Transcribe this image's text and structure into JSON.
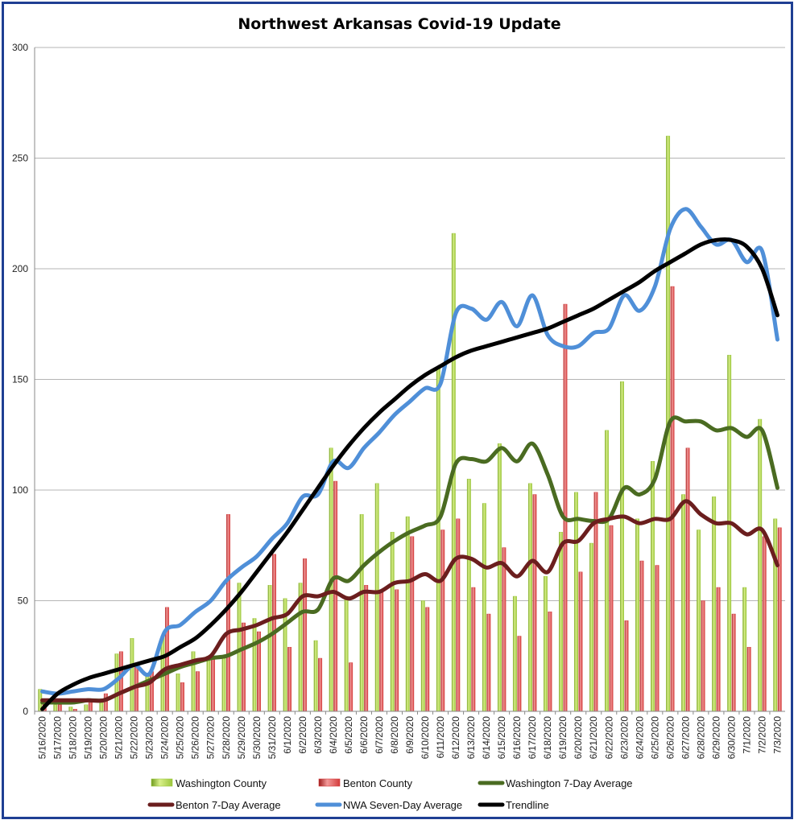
{
  "chart_data": {
    "type": "bar",
    "title": "Northwest Arkansas Covid-19 Update",
    "xlabel": "",
    "ylabel": "",
    "ylim": [
      0,
      300
    ],
    "y_ticks": [
      0,
      50,
      100,
      150,
      200,
      250,
      300
    ],
    "grid": true,
    "legend_position": "bottom",
    "categories": [
      "5/16/2020",
      "5/17/2020",
      "5/18/2020",
      "5/19/2020",
      "5/20/2020",
      "5/21/2020",
      "5/22/2020",
      "5/23/2020",
      "5/24/2020",
      "5/25/2020",
      "5/26/2020",
      "5/27/2020",
      "5/28/2020",
      "5/29/2020",
      "5/30/2020",
      "5/31/2020",
      "6/1/2020",
      "6/2/2020",
      "6/3/2020",
      "6/4/2020",
      "6/5/2020",
      "6/6/2020",
      "6/7/2020",
      "6/8/2020",
      "6/9/2020",
      "6/10/2020",
      "6/11/2020",
      "6/12/2020",
      "6/13/2020",
      "6/14/2020",
      "6/15/2020",
      "6/16/2020",
      "6/17/2020",
      "6/18/2020",
      "6/19/2020",
      "6/20/2020",
      "6/21/2020",
      "6/22/2020",
      "6/23/2020",
      "6/24/2020",
      "6/25/2020",
      "6/26/2020",
      "6/27/2020",
      "6/28/2020",
      "6/29/2020",
      "6/30/2020",
      "7/1/2020",
      "7/2/2020",
      "7/3/2020"
    ],
    "series": [
      {
        "name": "Washington County",
        "kind": "bar",
        "color": "#9bc63b",
        "values": [
          10,
          3,
          2,
          3,
          5,
          26,
          33,
          17,
          34,
          17,
          27,
          25,
          25,
          58,
          42,
          57,
          51,
          58,
          32,
          119,
          52,
          89,
          103,
          81,
          88,
          50,
          155,
          216,
          105,
          94,
          121,
          52,
          103,
          61,
          81,
          99,
          76,
          127,
          149,
          87,
          113,
          260,
          98,
          82,
          97,
          161,
          56,
          132,
          87
        ]
      },
      {
        "name": "Benton County",
        "kind": "bar",
        "color": "#d33b3b",
        "values": [
          3,
          3,
          1,
          4,
          8,
          27,
          21,
          18,
          47,
          13,
          18,
          25,
          89,
          40,
          36,
          71,
          29,
          69,
          24,
          104,
          22,
          57,
          55,
          55,
          79,
          47,
          82,
          87,
          56,
          44,
          74,
          34,
          98,
          45,
          184,
          63,
          99,
          84,
          41,
          68,
          66,
          192,
          119,
          50,
          56,
          44,
          29,
          79,
          83
        ]
      },
      {
        "name": "Washington 7-Day Average",
        "kind": "line",
        "color": "#4a6b21",
        "values": [
          4,
          4,
          4,
          5,
          5,
          8,
          11,
          14,
          17,
          20,
          22,
          24,
          25,
          28,
          31,
          35,
          40,
          45,
          46,
          60,
          59,
          66,
          72,
          77,
          81,
          84,
          88,
          112,
          114,
          113,
          119,
          113,
          121,
          107,
          88,
          87,
          86,
          87,
          101,
          98,
          105,
          131,
          131,
          131,
          127,
          128,
          124,
          127,
          101
        ]
      },
      {
        "name": "Benton 7-Day Average",
        "kind": "line",
        "color": "#6b1e1e",
        "values": [
          5,
          5,
          5,
          5,
          5,
          8,
          11,
          13,
          19,
          21,
          23,
          25,
          35,
          37,
          39,
          42,
          44,
          52,
          52,
          54,
          51,
          54,
          54,
          58,
          59,
          62,
          59,
          69,
          69,
          65,
          67,
          61,
          68,
          63,
          76,
          77,
          85,
          87,
          88,
          85,
          87,
          87,
          95,
          89,
          85,
          85,
          80,
          82,
          66
        ]
      },
      {
        "name": "NWA Seven-Day Average",
        "kind": "line",
        "color": "#4f8fd8",
        "values": [
          9,
          8,
          9,
          10,
          10,
          15,
          21,
          17,
          36,
          39,
          45,
          50,
          59,
          65,
          70,
          78,
          85,
          97,
          98,
          113,
          110,
          119,
          126,
          134,
          140,
          146,
          148,
          180,
          182,
          177,
          185,
          174,
          188,
          170,
          165,
          165,
          171,
          173,
          188,
          181,
          192,
          218,
          227,
          219,
          211,
          213,
          203,
          208,
          168
        ]
      },
      {
        "name": "Trendline",
        "kind": "line",
        "color": "#000000",
        "values": [
          1,
          8,
          12,
          15,
          17,
          19,
          21,
          23,
          25,
          29,
          33,
          39,
          46,
          54,
          63,
          72,
          81,
          91,
          101,
          111,
          120,
          128,
          135,
          141,
          147,
          152,
          156,
          160,
          163,
          165,
          167,
          169,
          171,
          173,
          176,
          179,
          182,
          186,
          190,
          194,
          199,
          203,
          207,
          211,
          213,
          213,
          210,
          200,
          179
        ]
      }
    ],
    "legend": [
      {
        "label": "Washington County",
        "kind": "bar",
        "color": "#9bc63b"
      },
      {
        "label": "Benton County",
        "kind": "bar",
        "color": "#d33b3b"
      },
      {
        "label": "Washington 7-Day Average",
        "kind": "line",
        "color": "#4a6b21"
      },
      {
        "label": "Benton 7-Day Average",
        "kind": "line",
        "color": "#6b1e1e"
      },
      {
        "label": "NWA Seven-Day Average",
        "kind": "line",
        "color": "#4f8fd8"
      },
      {
        "label": "Trendline",
        "kind": "line",
        "color": "#000000"
      }
    ]
  }
}
